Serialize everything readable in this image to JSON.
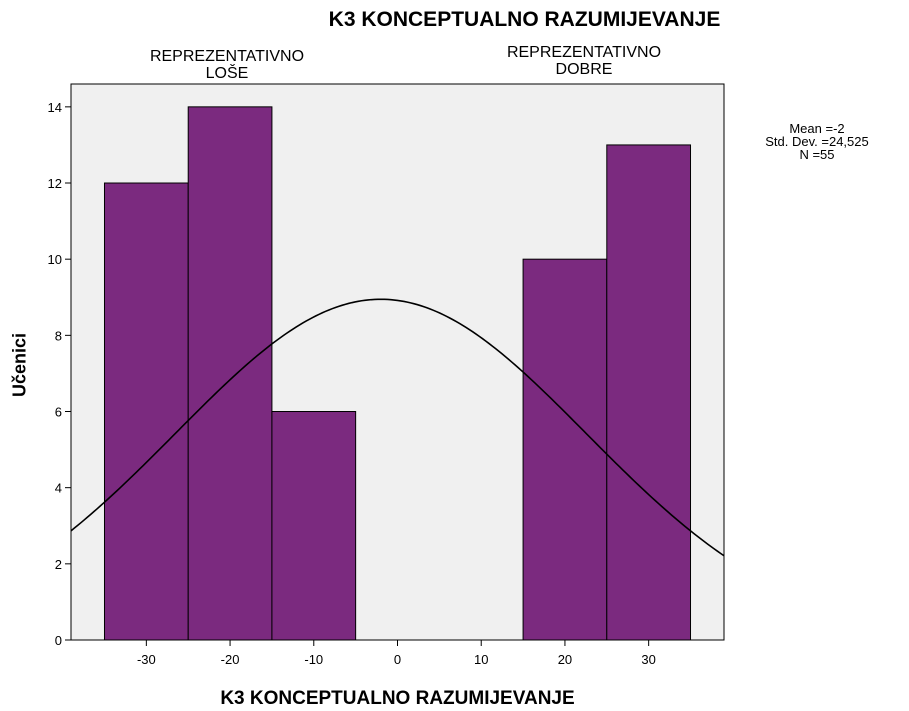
{
  "chart_data": {
    "type": "bar",
    "title": "K3 KONCEPTUALNO RAZUMIJEVANJE",
    "xlabel": "K3 KONCEPTUALNO RAZUMIJEVANJE",
    "ylabel": "Učenici",
    "xlim": [
      -39,
      39
    ],
    "ylim": [
      0,
      14.6
    ],
    "x_ticks": [
      -30,
      -20,
      -10,
      0,
      10,
      20,
      30
    ],
    "y_ticks": [
      0,
      2,
      4,
      6,
      8,
      10,
      12,
      14
    ],
    "bins": [
      {
        "from": -35,
        "to": -25,
        "value": 12
      },
      {
        "from": -25,
        "to": -15,
        "value": 14
      },
      {
        "from": -15,
        "to": -5,
        "value": 6
      },
      {
        "from": 15,
        "to": 25,
        "value": 10
      },
      {
        "from": 25,
        "to": 35,
        "value": 13
      }
    ],
    "normal_curve": {
      "mean": -2,
      "sd": 24.525,
      "n": 55,
      "bin_width": 10
    },
    "annotations": [
      {
        "lines": [
          "REPREZENTATIVNO",
          "LOŠE"
        ],
        "x": -20
      },
      {
        "lines": [
          "REPREZENTATIVNO",
          "DOBRE"
        ],
        "x": 22
      }
    ],
    "stats": {
      "mean": "Mean =-2",
      "sd": "Std. Dev. =24,525",
      "n": "N =55"
    },
    "grid": false,
    "colors": {
      "bar": "#7b2a7f",
      "plot_bg": "#f0f0f0",
      "curve": "#000000"
    }
  }
}
